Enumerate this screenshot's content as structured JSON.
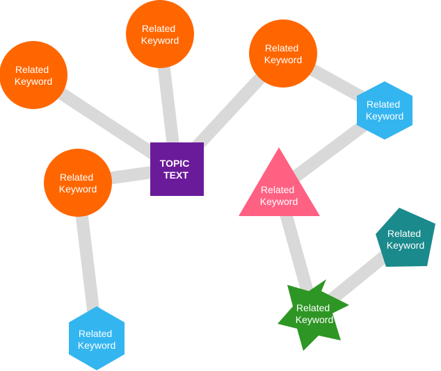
{
  "topic": {
    "line1": "TOPIC",
    "line2": "TEXT",
    "color": "#6a1b9a"
  },
  "colors": {
    "edge": "#d9d9d9",
    "orange": "#ff6600",
    "blue": "#33b5f0",
    "pink": "#ff6183",
    "teal": "#1a8a8c",
    "green": "#2e9624"
  },
  "nodes": [
    {
      "id": "kw-top-left",
      "shape": "circle",
      "color": "orange",
      "line1": "Related",
      "line2": "Keyword"
    },
    {
      "id": "kw-top-center",
      "shape": "circle",
      "color": "orange",
      "line1": "Related",
      "line2": "Keyword"
    },
    {
      "id": "kw-top-right",
      "shape": "circle",
      "color": "orange",
      "line1": "Related",
      "line2": "Keyword"
    },
    {
      "id": "kw-mid-left",
      "shape": "circle",
      "color": "orange",
      "line1": "Related",
      "line2": "Keyword"
    },
    {
      "id": "kw-hexagon-right",
      "shape": "hexagon",
      "color": "blue",
      "line1": "Related",
      "line2": "Keyword"
    },
    {
      "id": "kw-triangle",
      "shape": "triangle",
      "color": "pink",
      "line1": "Related",
      "line2": "Keyword"
    },
    {
      "id": "kw-pentagon",
      "shape": "pentagon",
      "color": "teal",
      "line1": "Related",
      "line2": "Keyword"
    },
    {
      "id": "kw-star",
      "shape": "star",
      "color": "green",
      "line1": "Related",
      "line2": "Keyword"
    },
    {
      "id": "kw-hexagon-bottom",
      "shape": "hexagon",
      "color": "blue",
      "line1": "Related",
      "line2": "Keyword"
    }
  ]
}
